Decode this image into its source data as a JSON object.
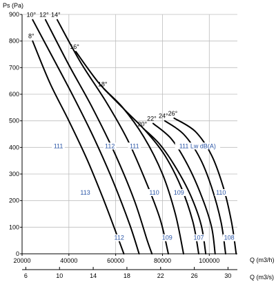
{
  "chart_data": {
    "type": "line",
    "y_axis_label": "Ps (Pa)",
    "x_axis_label": "Q (m3/h)",
    "x2_axis_label": "Q (m3/s)",
    "x_ticks": [
      20000,
      40000,
      60000,
      80000,
      100000
    ],
    "x2_ticks": [
      6,
      10,
      14,
      18,
      22,
      26,
      30
    ],
    "y_ticks": [
      0,
      100,
      200,
      300,
      400,
      500,
      600,
      700,
      800,
      900
    ],
    "xlim": [
      20000,
      112000
    ],
    "ylim": [
      0,
      900
    ],
    "grid": true,
    "blade_angle_curves": [
      {
        "label": "8°",
        "points": [
          [
            24500,
            800
          ],
          [
            32000,
            640
          ],
          [
            40000,
            500
          ],
          [
            48000,
            350
          ],
          [
            55000,
            200
          ],
          [
            61000,
            60
          ],
          [
            63500,
            0
          ]
        ]
      },
      {
        "label": "10°",
        "points": [
          [
            24500,
            880
          ],
          [
            33000,
            740
          ],
          [
            42000,
            590
          ],
          [
            51000,
            430
          ],
          [
            59000,
            270
          ],
          [
            66000,
            110
          ],
          [
            70000,
            0
          ]
        ]
      },
      {
        "label": "12°",
        "points": [
          [
            30000,
            880
          ],
          [
            40000,
            710
          ],
          [
            50000,
            550
          ],
          [
            60000,
            370
          ],
          [
            68000,
            200
          ],
          [
            73500,
            50
          ],
          [
            75500,
            0
          ]
        ]
      },
      {
        "label": "14°",
        "points": [
          [
            35000,
            880
          ],
          [
            45000,
            720
          ],
          [
            56000,
            570
          ],
          [
            65000,
            430
          ],
          [
            73000,
            270
          ],
          [
            79000,
            130
          ],
          [
            82500,
            0
          ]
        ]
      },
      {
        "label": "16°",
        "points": [
          [
            43000,
            760
          ],
          [
            53000,
            640
          ],
          [
            63000,
            550
          ],
          [
            72000,
            440
          ],
          [
            80000,
            300
          ],
          [
            85500,
            150
          ],
          [
            89000,
            0
          ]
        ]
      },
      {
        "label": "18°",
        "points": [
          [
            55000,
            620
          ],
          [
            64000,
            540
          ],
          [
            73000,
            460
          ],
          [
            81000,
            370
          ],
          [
            88000,
            250
          ],
          [
            93000,
            120
          ],
          [
            95500,
            0
          ]
        ]
      },
      {
        "label": "20°",
        "points": [
          [
            72000,
            470
          ],
          [
            79000,
            410
          ],
          [
            86000,
            320
          ],
          [
            92000,
            220
          ],
          [
            96500,
            110
          ],
          [
            98500,
            0
          ]
        ]
      },
      {
        "label": "22°",
        "points": [
          [
            76000,
            490
          ],
          [
            84000,
            430
          ],
          [
            91000,
            330
          ],
          [
            97000,
            210
          ],
          [
            101000,
            100
          ],
          [
            102500,
            0
          ]
        ]
      },
      {
        "label": "24°",
        "points": [
          [
            81000,
            500
          ],
          [
            89000,
            450
          ],
          [
            96000,
            360
          ],
          [
            101000,
            250
          ],
          [
            105000,
            120
          ],
          [
            107000,
            0
          ]
        ]
      },
      {
        "label": "26°",
        "points": [
          [
            85000,
            510
          ],
          [
            94000,
            460
          ],
          [
            101000,
            370
          ],
          [
            106000,
            250
          ],
          [
            109500,
            120
          ],
          [
            111500,
            0
          ]
        ]
      }
    ],
    "sound_level_labels": [
      {
        "text": "111",
        "x": 35500,
        "y": 400
      },
      {
        "text": "112",
        "x": 57500,
        "y": 400
      },
      {
        "text": "111",
        "x": 68000,
        "y": 400
      },
      {
        "text": "111 Lw dB(A)",
        "x": 95000,
        "y": 400
      },
      {
        "text": "113",
        "x": 47000,
        "y": 225
      },
      {
        "text": "110",
        "x": 76500,
        "y": 225
      },
      {
        "text": "109",
        "x": 87000,
        "y": 225
      },
      {
        "text": "110",
        "x": 105000,
        "y": 225
      },
      {
        "text": "112",
        "x": 61500,
        "y": 55
      },
      {
        "text": "109",
        "x": 82000,
        "y": 55
      },
      {
        "text": "107",
        "x": 95500,
        "y": 55
      },
      {
        "text": "108",
        "x": 108500,
        "y": 55
      }
    ]
  }
}
